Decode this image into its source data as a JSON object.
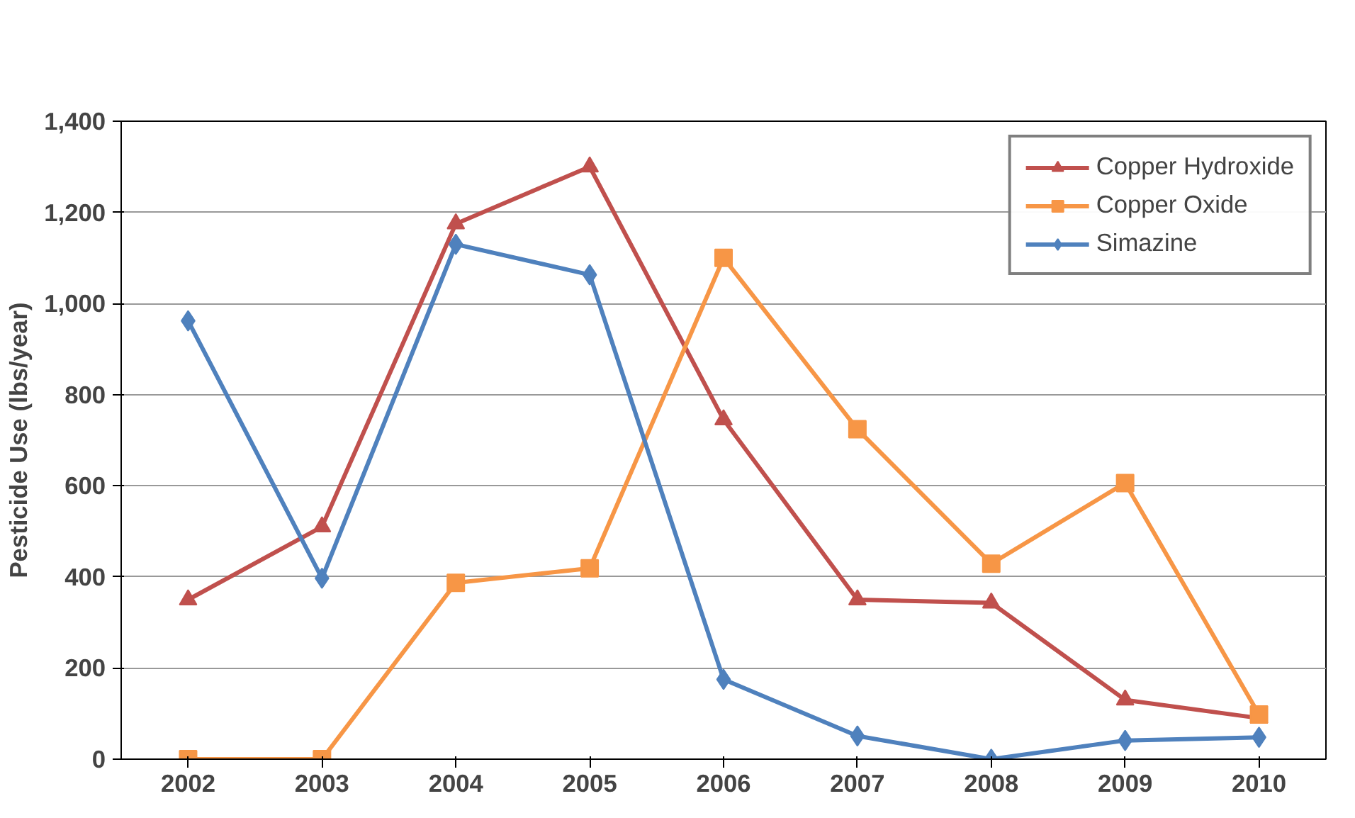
{
  "chart_data": {
    "type": "line",
    "ylabel": "Pesticide Use (lbs/year)",
    "categories": [
      "2002",
      "2003",
      "2004",
      "2005",
      "2006",
      "2007",
      "2008",
      "2009",
      "2010"
    ],
    "series": [
      {
        "name": "Copper Hydroxide",
        "color": "#c0504d",
        "marker": "triangle",
        "values": [
          350,
          510,
          1175,
          1300,
          745,
          350,
          343,
          130,
          90
        ]
      },
      {
        "name": "Copper Oxide",
        "color": "#f79646",
        "marker": "square",
        "values": [
          0,
          0,
          387,
          419,
          1100,
          724,
          429,
          606,
          98
        ]
      },
      {
        "name": "Simazine",
        "color": "#4f81bd",
        "marker": "diamond",
        "values": [
          962,
          397,
          1130,
          1063,
          175,
          51,
          0,
          41,
          48
        ]
      }
    ],
    "ylim": [
      0,
      1400
    ],
    "yticks": [
      {
        "value": 0,
        "label": "0"
      },
      {
        "value": 200,
        "label": "200"
      },
      {
        "value": 400,
        "label": "400"
      },
      {
        "value": 600,
        "label": "600"
      },
      {
        "value": 800,
        "label": "800"
      },
      {
        "value": 1000,
        "label": "1,000"
      },
      {
        "value": 1200,
        "label": "1,200"
      },
      {
        "value": 1400,
        "label": "1,400"
      }
    ],
    "grid": "y",
    "legend": "top right",
    "line_style": "solid"
  }
}
